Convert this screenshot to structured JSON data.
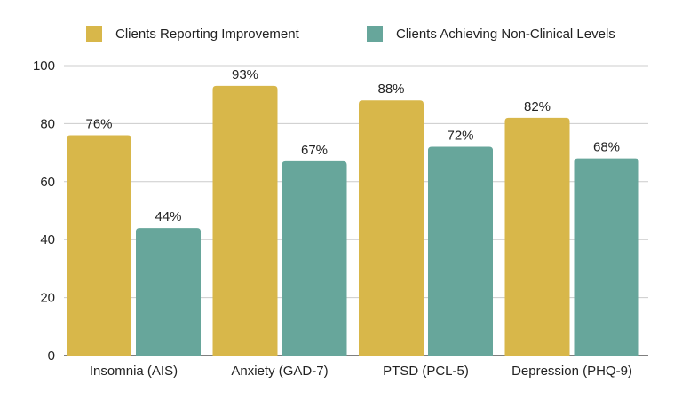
{
  "chart_data": {
    "type": "bar",
    "title": "",
    "xlabel": "",
    "ylabel": "",
    "ylim": [
      0,
      100
    ],
    "yticks": [
      0,
      20,
      40,
      60,
      80,
      100
    ],
    "grid": true,
    "legend_position": "top",
    "categories": [
      "Insomnia (AIS)",
      "Anxiety (GAD-7)",
      "PTSD (PCL-5)",
      "Depression (PHQ-9)"
    ],
    "series": [
      {
        "name": "Clients Reporting Improvement",
        "color": "#D8B74A",
        "values": [
          76,
          93,
          88,
          82
        ],
        "labels": [
          "76%",
          "93%",
          "88%",
          "82%"
        ]
      },
      {
        "name": "Clients Achieving Non-Clinical Levels",
        "color": "#67A69B",
        "values": [
          44,
          67,
          72,
          68
        ],
        "labels": [
          "44%",
          "67%",
          "72%",
          "68%"
        ]
      }
    ]
  }
}
